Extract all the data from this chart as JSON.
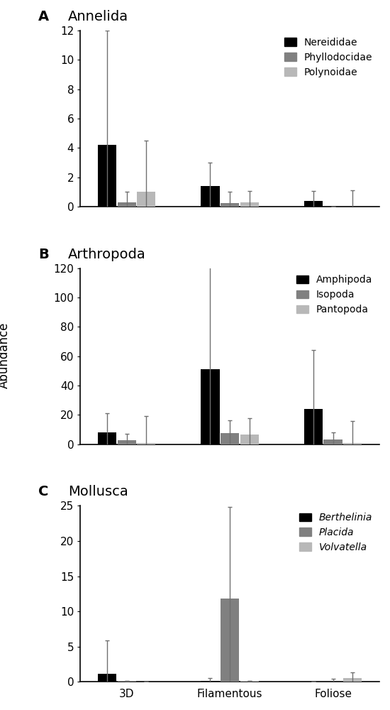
{
  "panels": [
    {
      "label": "A",
      "title": "Annelida",
      "legend_labels": [
        "Nereididae",
        "Phyllodocidae",
        "Polynoidae"
      ],
      "legend_italic": [
        false,
        false,
        false
      ],
      "colors": [
        "#000000",
        "#808080",
        "#b8b8b8"
      ],
      "groups": [
        "3D",
        "Filamentous",
        "Foliose"
      ],
      "values": [
        [
          4.2,
          0.3,
          1.0
        ],
        [
          1.4,
          0.25,
          0.3
        ],
        [
          0.4,
          0.0,
          0.0
        ]
      ],
      "errors": [
        [
          7.8,
          0.7,
          3.5
        ],
        [
          1.6,
          0.75,
          0.75
        ],
        [
          0.65,
          0.0,
          1.1
        ]
      ],
      "ylim": [
        0,
        12
      ],
      "yticks": [
        0,
        2,
        4,
        6,
        8,
        10,
        12
      ]
    },
    {
      "label": "B",
      "title": "Arthropoda",
      "legend_labels": [
        "Amphipoda",
        "Isopoda",
        "Pantopoda"
      ],
      "legend_italic": [
        false,
        false,
        false
      ],
      "colors": [
        "#000000",
        "#808080",
        "#b8b8b8"
      ],
      "groups": [
        "3D",
        "Filamentous",
        "Foliose"
      ],
      "values": [
        [
          8.0,
          2.5,
          1.0
        ],
        [
          51.0,
          7.5,
          6.5
        ],
        [
          24.0,
          3.0,
          1.0
        ]
      ],
      "errors": [
        [
          13.0,
          4.5,
          18.0
        ],
        [
          70.0,
          9.0,
          11.0
        ],
        [
          40.0,
          5.0,
          15.0
        ]
      ],
      "ylim": [
        0,
        120
      ],
      "yticks": [
        0,
        20,
        40,
        60,
        80,
        100,
        120
      ]
    },
    {
      "label": "C",
      "title": "Mollusca",
      "legend_labels": [
        "Berthelinia",
        "Placida",
        "Volvatella"
      ],
      "legend_italic": [
        true,
        true,
        true
      ],
      "colors": [
        "#000000",
        "#808080",
        "#b8b8b8"
      ],
      "groups": [
        "3D",
        "Filamentous",
        "Foliose"
      ],
      "values": [
        [
          1.1,
          0.15,
          0.0
        ],
        [
          0.15,
          11.8,
          0.1
        ],
        [
          0.0,
          0.0,
          0.5
        ]
      ],
      "errors": [
        [
          4.8,
          0.0,
          0.0
        ],
        [
          0.4,
          13.0,
          0.0
        ],
        [
          0.0,
          0.4,
          0.85
        ]
      ],
      "ylim": [
        0,
        25
      ],
      "yticks": [
        0,
        5,
        10,
        15,
        20,
        25
      ]
    }
  ],
  "ylabel": "Abundance",
  "bar_width": 0.18,
  "figsize": [
    5.5,
    10.0
  ],
  "dpi": 100
}
